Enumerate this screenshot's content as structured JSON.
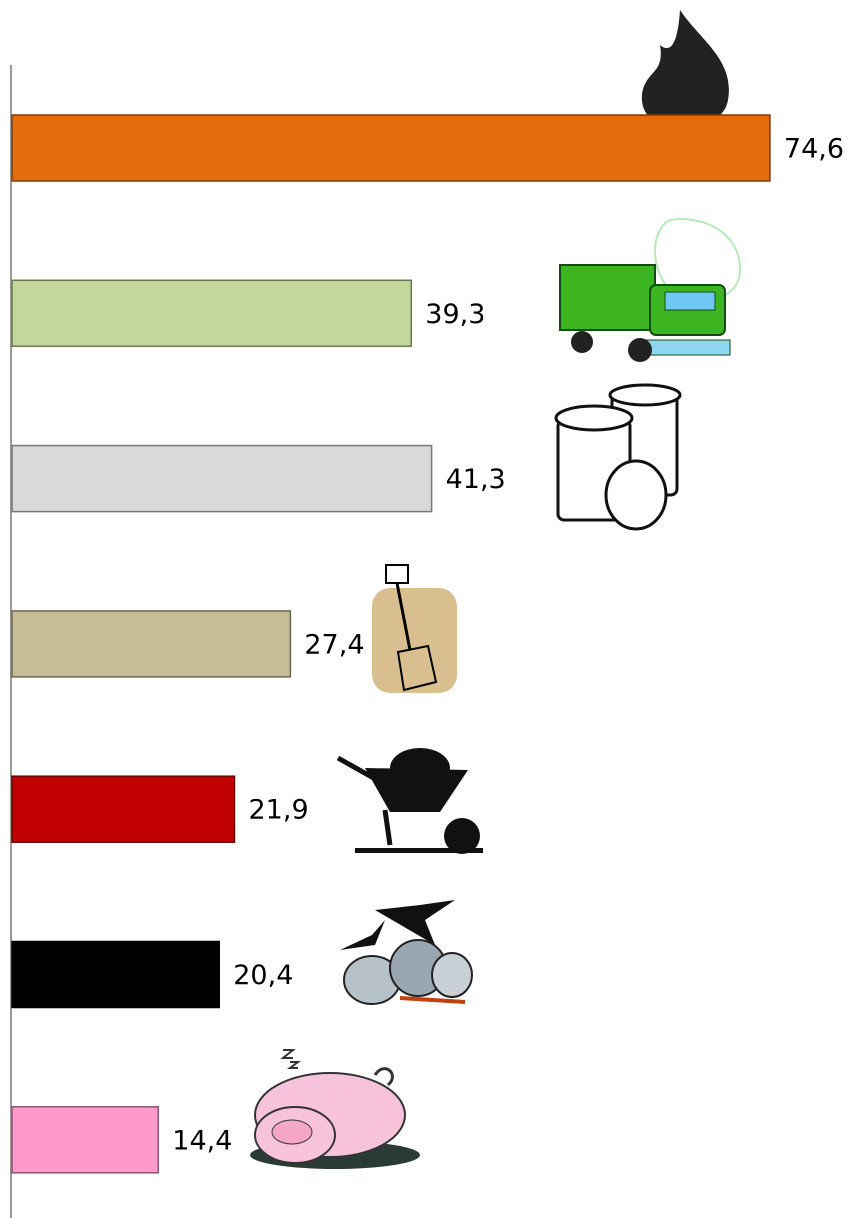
{
  "chart_data": {
    "type": "bar",
    "orientation": "horizontal",
    "categories": [
      null,
      null,
      null,
      null,
      null,
      null,
      null
    ],
    "values": [
      74.6,
      39.3,
      41.3,
      27.4,
      21.9,
      20.4,
      14.4
    ],
    "value_labels": [
      "74,6",
      "39,3",
      "41,3",
      "27,4",
      "21,9",
      "20,4",
      "14,4"
    ],
    "colors": [
      "#e36c0a",
      "#c3d69b",
      "#d9d9d9",
      "#c4bd97",
      "#c00000",
      "#000000",
      "#ff99cc"
    ],
    "xlim": [
      0,
      75
    ]
  }
}
